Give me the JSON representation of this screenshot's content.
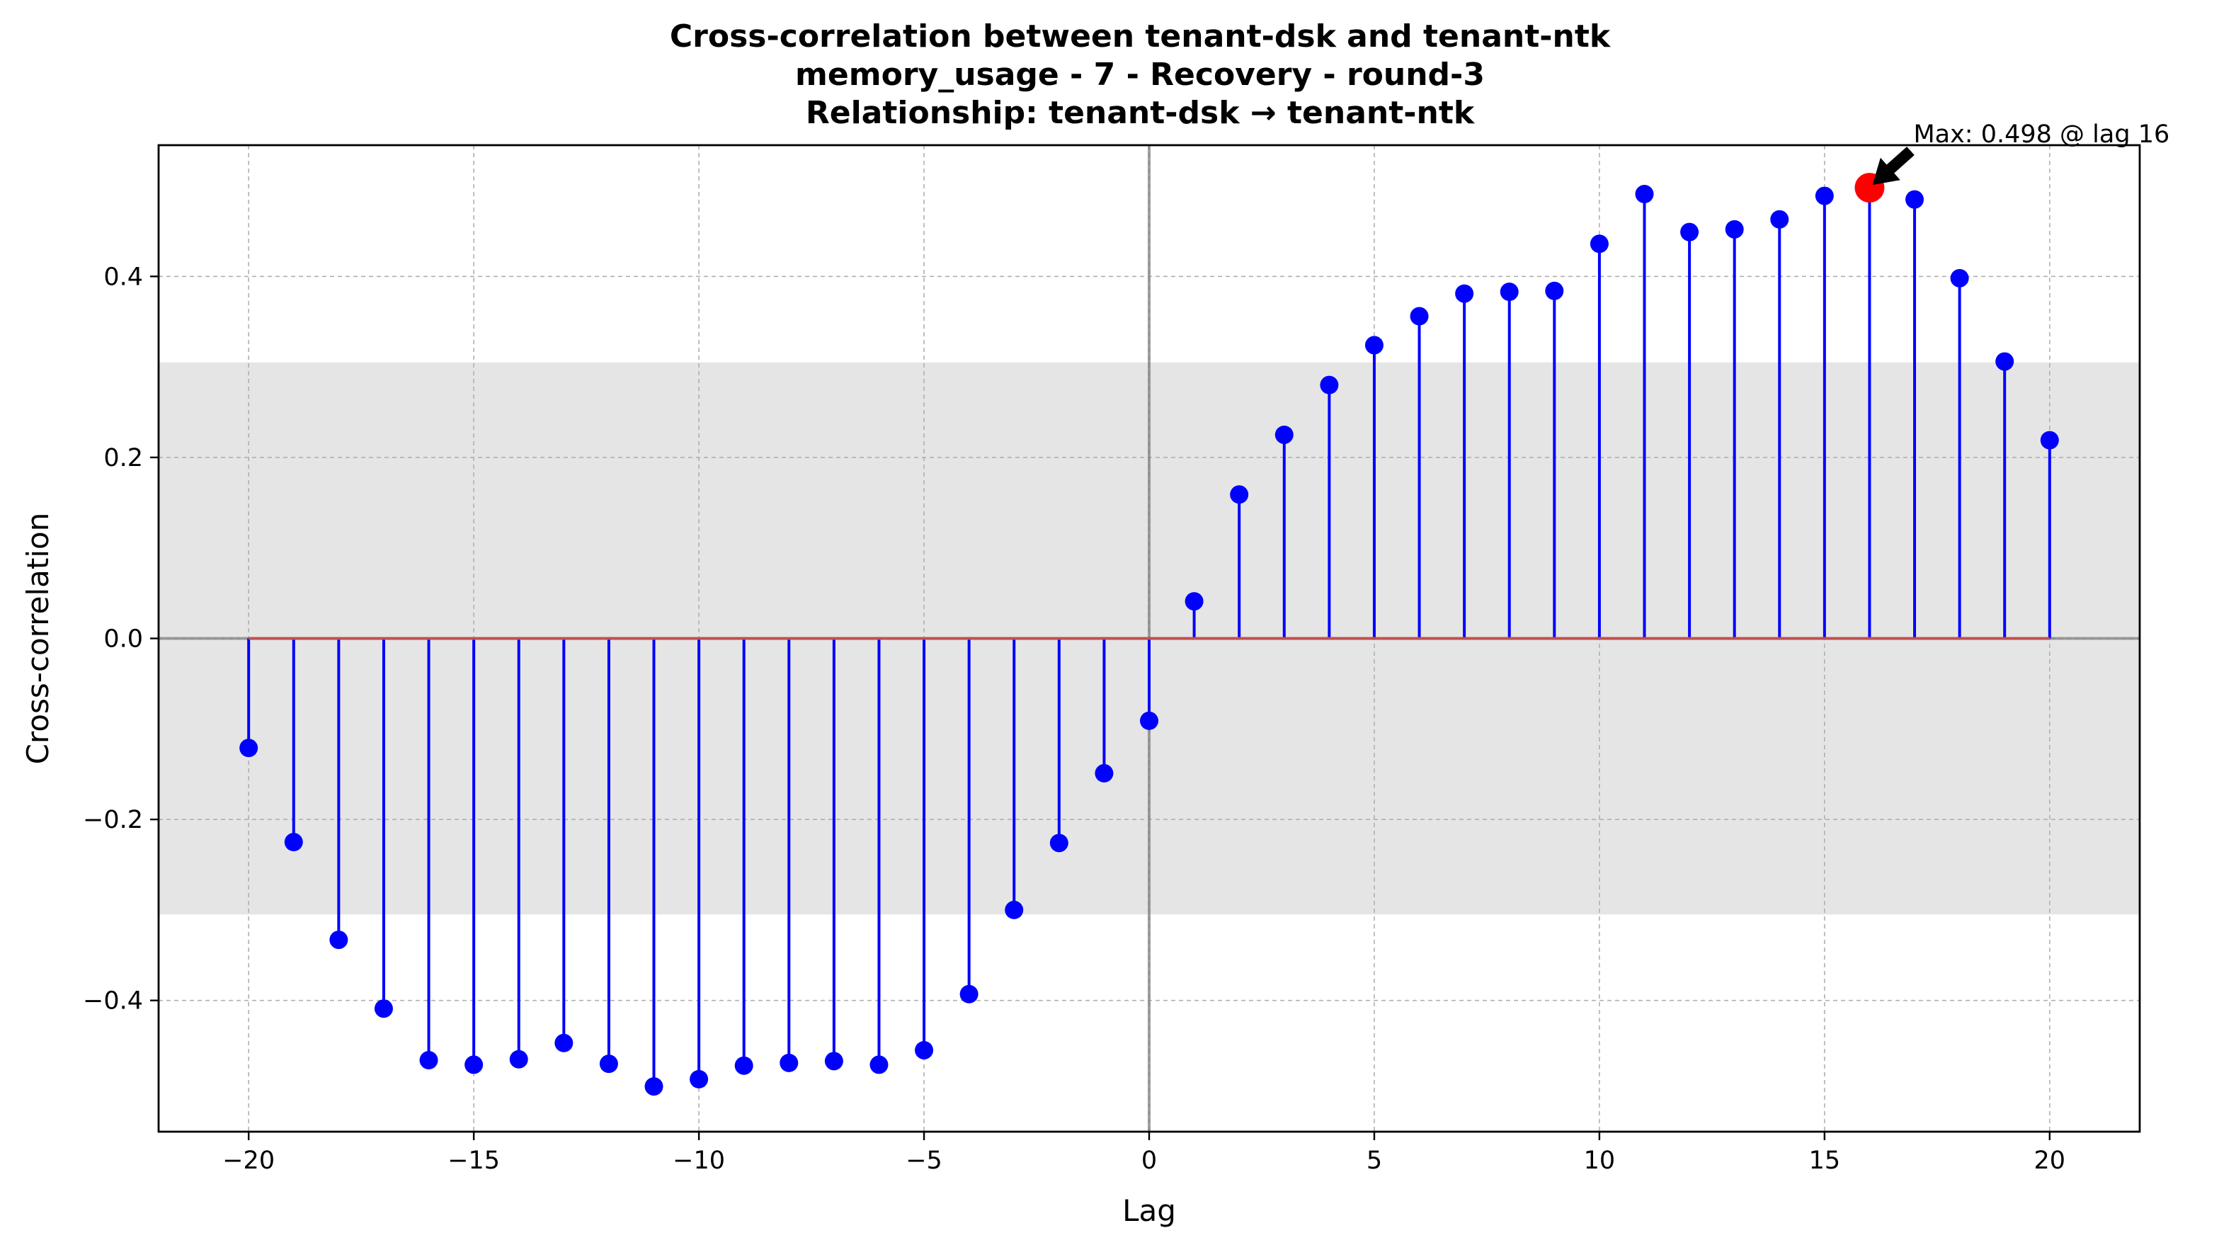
{
  "chart_data": {
    "type": "stem",
    "title_lines": [
      "Cross-correlation between tenant-dsk and tenant-ntk",
      "memory_usage - 7 - Recovery - round-3",
      "Relationship: tenant-dsk → tenant-ntk"
    ],
    "xlabel": "Lag",
    "ylabel": "Cross-correlation",
    "xlim": [
      -22,
      22
    ],
    "ylim": [
      -0.545,
      0.545
    ],
    "xticks": [
      -20,
      -15,
      -10,
      -5,
      0,
      5,
      10,
      15,
      20
    ],
    "xtick_labels": [
      "−20",
      "−15",
      "−10",
      "−5",
      "0",
      "5",
      "10",
      "15",
      "20"
    ],
    "yticks": [
      -0.4,
      -0.2,
      0.0,
      0.2,
      0.4
    ],
    "ytick_labels": [
      "−0.4",
      "−0.2",
      "0.0",
      "0.2",
      "0.4"
    ],
    "grid": true,
    "confidence_band": [
      -0.305,
      0.305
    ],
    "lags": [
      -20,
      -19,
      -18,
      -17,
      -16,
      -15,
      -14,
      -13,
      -12,
      -11,
      -10,
      -9,
      -8,
      -7,
      -6,
      -5,
      -4,
      -3,
      -2,
      -1,
      0,
      1,
      2,
      3,
      4,
      5,
      6,
      7,
      8,
      9,
      10,
      11,
      12,
      13,
      14,
      15,
      16,
      17,
      18,
      19,
      20
    ],
    "values": [
      -0.121,
      -0.225,
      -0.333,
      -0.409,
      -0.466,
      -0.471,
      -0.465,
      -0.447,
      -0.47,
      -0.495,
      -0.487,
      -0.472,
      -0.469,
      -0.467,
      -0.471,
      -0.455,
      -0.393,
      -0.3,
      -0.226,
      -0.149,
      -0.091,
      0.041,
      0.159,
      0.225,
      0.28,
      0.324,
      0.356,
      0.381,
      0.383,
      0.384,
      0.436,
      0.491,
      0.449,
      0.452,
      0.463,
      0.489,
      0.498,
      0.485,
      0.398,
      0.306,
      0.219
    ],
    "max_point": {
      "lag": 16,
      "value": 0.498
    },
    "annotation": "Max: 0.498 @ lag 16",
    "colors": {
      "stem": "#0000ff",
      "baseline": "#c0504d",
      "max_marker": "#ff0000",
      "band": "#e5e5e5",
      "zero_line": "#808080",
      "grid": "#b0b0b0"
    }
  }
}
